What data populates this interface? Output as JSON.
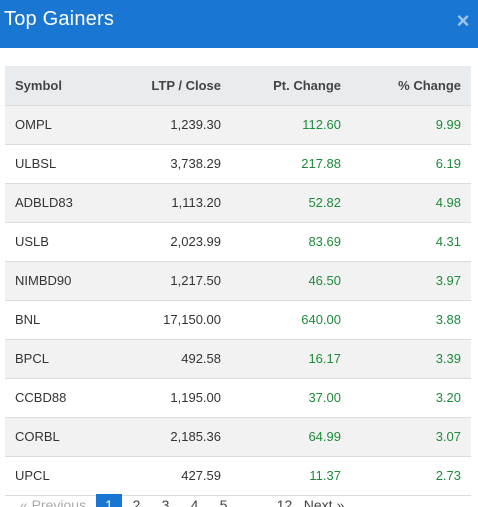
{
  "modal": {
    "title": "Top Gainers",
    "close_glyph": "×"
  },
  "table": {
    "headers": [
      "Symbol",
      "LTP / Close",
      "Pt. Change",
      "% Change"
    ],
    "rows": [
      {
        "symbol": "OMPL",
        "ltp": "1,239.30",
        "pt_change": "112.60",
        "pct_change": "9.99"
      },
      {
        "symbol": "ULBSL",
        "ltp": "3,738.29",
        "pt_change": "217.88",
        "pct_change": "6.19"
      },
      {
        "symbol": "ADBLD83",
        "ltp": "1,113.20",
        "pt_change": "52.82",
        "pct_change": "4.98"
      },
      {
        "symbol": "USLB",
        "ltp": "2,023.99",
        "pt_change": "83.69",
        "pct_change": "4.31"
      },
      {
        "symbol": "NIMBD90",
        "ltp": "1,217.50",
        "pt_change": "46.50",
        "pct_change": "3.97"
      },
      {
        "symbol": "BNL",
        "ltp": "17,150.00",
        "pt_change": "640.00",
        "pct_change": "3.88"
      },
      {
        "symbol": "BPCL",
        "ltp": "492.58",
        "pt_change": "16.17",
        "pct_change": "3.39"
      },
      {
        "symbol": "CCBD88",
        "ltp": "1,195.00",
        "pt_change": "37.00",
        "pct_change": "3.20"
      },
      {
        "symbol": "CORBL",
        "ltp": "2,185.36",
        "pt_change": "64.99",
        "pct_change": "3.07"
      },
      {
        "symbol": "UPCL",
        "ltp": "427.59",
        "pt_change": "11.37",
        "pct_change": "2.73"
      }
    ]
  },
  "pagination": {
    "previous_label": "« Previous",
    "pages": [
      "1",
      "2",
      "3",
      "4",
      "5"
    ],
    "active_page": "1",
    "last_page": "12",
    "next_label": "Next »"
  },
  "colors": {
    "header_bg": "#1976d2",
    "positive": "#1e8a3c"
  }
}
